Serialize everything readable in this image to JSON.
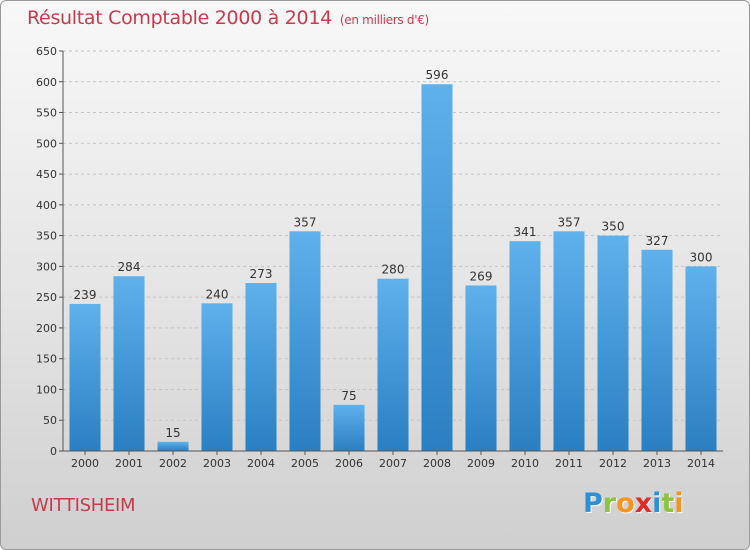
{
  "title": "Résultat Comptable 2000 à 2014",
  "subtitle": "(en milliers d'€)",
  "commune": "WITTISHEIM",
  "logo": {
    "letters": [
      "P",
      "r",
      "o",
      "x",
      "i",
      "t",
      "i"
    ],
    "colors": [
      "#2d8fd5",
      "#8bc53f",
      "#f7941d",
      "#e02a2a",
      "#2d8fd5",
      "#8bc53f",
      "#f7941d"
    ]
  },
  "colors": {
    "title": "#c83a4c",
    "bar_top": "#5fb1ec",
    "bar_bottom": "#2a7fc2",
    "grid": "#c4c4c4",
    "axis": "#555555"
  },
  "chart_data": {
    "type": "bar",
    "title": "Résultat Comptable 2000 à 2014",
    "subtitle": "(en milliers d'€)",
    "categories": [
      "2000",
      "2001",
      "2002",
      "2003",
      "2004",
      "2005",
      "2006",
      "2007",
      "2008",
      "2009",
      "2010",
      "2011",
      "2012",
      "2013",
      "2014"
    ],
    "values": [
      239,
      284,
      15,
      240,
      273,
      357,
      75,
      280,
      596,
      269,
      341,
      357,
      350,
      327,
      300
    ],
    "ylim": [
      0,
      650
    ],
    "yticks": [
      0,
      50,
      100,
      150,
      200,
      250,
      300,
      350,
      400,
      450,
      500,
      550,
      600,
      650
    ],
    "grid": true,
    "data_labels": true
  }
}
